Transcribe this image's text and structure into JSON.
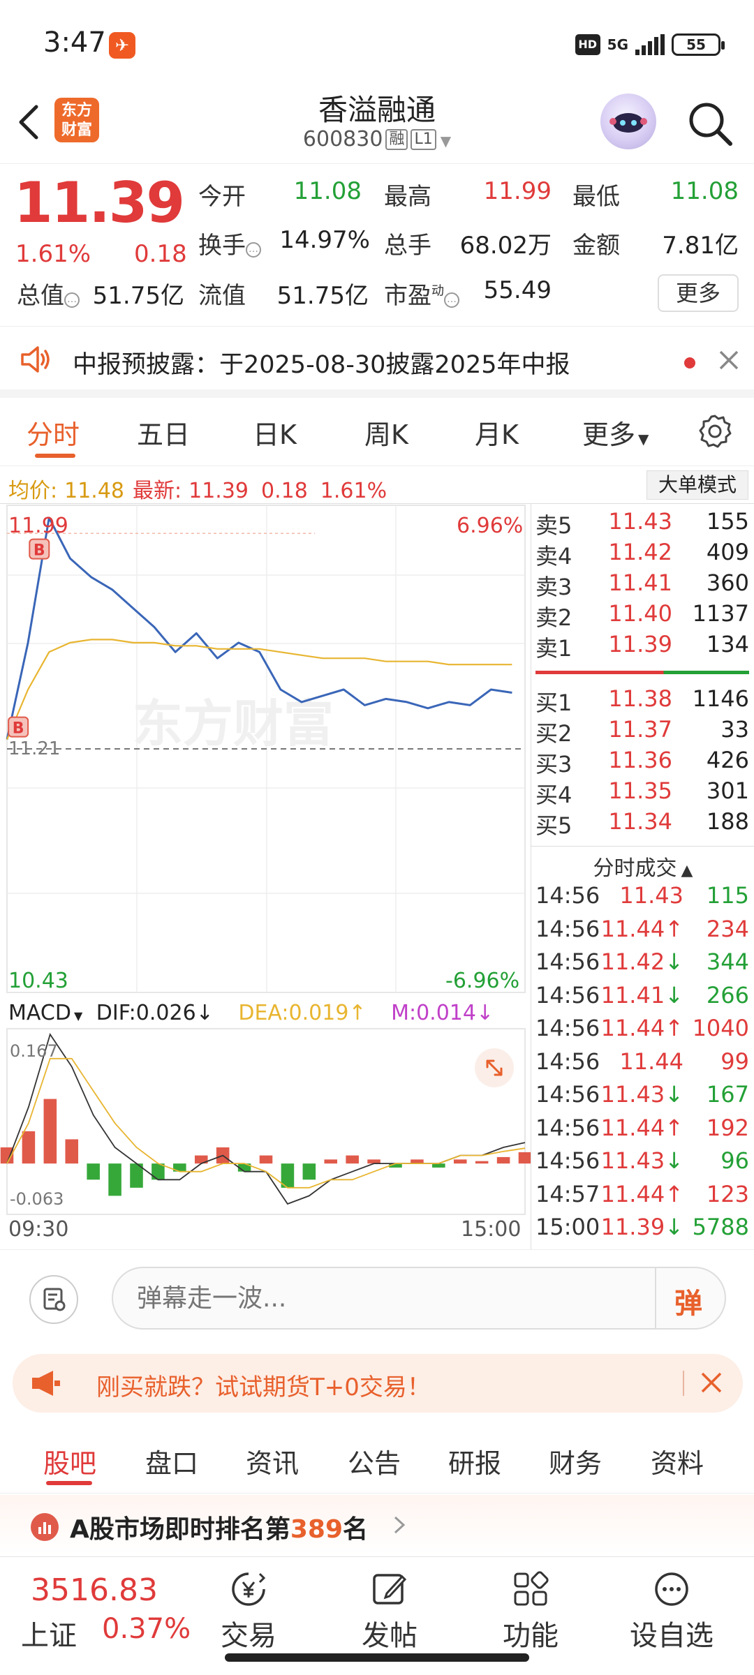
{
  "status_bar": {
    "time": "3:47",
    "network": "5G",
    "hd": "HD",
    "battery": "55"
  },
  "header": {
    "logo_text": "东方财富",
    "stock_name": "香溢融通",
    "stock_code": "600830",
    "tags": [
      "融",
      "L1"
    ]
  },
  "quote": {
    "price": "11.39",
    "change_pct": "1.61%",
    "change_abs": "0.18",
    "fields": [
      {
        "label": "今开",
        "value": "11.08",
        "color": "green"
      },
      {
        "label": "最高",
        "value": "11.99",
        "color": "red"
      },
      {
        "label": "最低",
        "value": "11.08",
        "color": "green"
      },
      {
        "label": "换手",
        "value": "14.97%",
        "color": "dark"
      },
      {
        "label": "总手",
        "value": "68.02万",
        "color": "dark"
      },
      {
        "label": "金额",
        "value": "7.81亿",
        "color": "dark"
      },
      {
        "label": "总值",
        "value": "51.75亿",
        "color": "dark"
      },
      {
        "label": "流值",
        "value": "51.75亿",
        "color": "dark"
      },
      {
        "label": "市盈",
        "value": "55.49",
        "color": "dark",
        "superscript": "动"
      }
    ],
    "more_label": "更多"
  },
  "notice": {
    "text": "中报预披露：于2025-08-30披露2025年中报"
  },
  "chart_tabs": {
    "items": [
      "分时",
      "五日",
      "日K",
      "周K",
      "月K",
      "更多"
    ],
    "active": "分时"
  },
  "info_bar": {
    "avg_label": "均价:",
    "avg_value": "11.48",
    "latest_label": "最新:",
    "latest_value": "11.39",
    "latest_change": "0.18",
    "latest_pct": "1.61%",
    "bigorder_label": "大单模式"
  },
  "chart_labels": {
    "y_max": "11.99",
    "y_min": "10.43",
    "pct_max": "6.96%",
    "pct_min": "-6.96%",
    "prev_close": "11.21",
    "time_start": "09:30",
    "time_end": "15:00",
    "watermark": "东方财富"
  },
  "macd": {
    "name": "MACD",
    "dif": "DIF:0.026",
    "dea": "DEA:0.019",
    "m": "M:0.014",
    "y_max": "0.167",
    "y_min": "-0.063"
  },
  "chart_data": [
    {
      "type": "line",
      "title": "分时",
      "x": [
        "09:30",
        "09:40",
        "09:50",
        "10:00",
        "10:10",
        "10:20",
        "10:30",
        "10:40",
        "10:50",
        "11:00",
        "11:10",
        "11:20",
        "11:30",
        "13:10",
        "13:20",
        "13:30",
        "13:40",
        "13:50",
        "14:00",
        "14:10",
        "14:20",
        "14:30",
        "14:40",
        "14:50",
        "15:00"
      ],
      "series": [
        {
          "name": "最新",
          "color": "#3a66b8",
          "values": [
            11.24,
            11.55,
            11.95,
            11.82,
            11.76,
            11.72,
            11.66,
            11.6,
            11.52,
            11.58,
            11.5,
            11.55,
            11.52,
            11.4,
            11.36,
            11.38,
            11.4,
            11.35,
            11.37,
            11.36,
            11.34,
            11.36,
            11.35,
            11.4,
            11.39
          ]
        },
        {
          "name": "均价",
          "color": "#e8b530",
          "values": [
            11.24,
            11.4,
            11.52,
            11.55,
            11.56,
            11.56,
            11.55,
            11.55,
            11.54,
            11.54,
            11.53,
            11.53,
            11.53,
            11.52,
            11.51,
            11.5,
            11.5,
            11.5,
            11.49,
            11.49,
            11.49,
            11.48,
            11.48,
            11.48,
            11.48
          ]
        }
      ],
      "ylim": [
        10.43,
        11.99
      ],
      "prev_close": 11.21,
      "markers": [
        "B",
        "B"
      ]
    },
    {
      "type": "bar",
      "title": "MACD",
      "x": [
        "09:30",
        "09:40",
        "09:50",
        "10:00",
        "10:10",
        "10:20",
        "10:30",
        "10:40",
        "10:50",
        "11:00",
        "11:10",
        "11:20",
        "11:30",
        "13:10",
        "13:20",
        "13:30",
        "13:40",
        "13:50",
        "14:00",
        "14:10",
        "14:20",
        "14:30",
        "14:40",
        "14:50",
        "15:00"
      ],
      "values": [
        0.02,
        0.04,
        0.08,
        0.03,
        -0.02,
        -0.04,
        -0.03,
        -0.02,
        -0.01,
        0.01,
        0.02,
        -0.01,
        0.01,
        -0.03,
        -0.02,
        0.005,
        0.01,
        0.005,
        -0.005,
        0.005,
        -0.005,
        0.005,
        0.003,
        0.008,
        0.014
      ],
      "series": [
        {
          "name": "DIF",
          "values": [
            0.0,
            0.07,
            0.16,
            0.12,
            0.06,
            0.02,
            0.0,
            -0.02,
            -0.02,
            0.0,
            0.01,
            -0.01,
            -0.01,
            -0.05,
            -0.04,
            -0.02,
            -0.01,
            0.0,
            0.0,
            0.0,
            0.0,
            0.01,
            0.01,
            0.02,
            0.026
          ]
        },
        {
          "name": "DEA",
          "values": [
            0.0,
            0.05,
            0.13,
            0.13,
            0.09,
            0.05,
            0.02,
            0.0,
            -0.01,
            -0.01,
            0.0,
            0.0,
            -0.01,
            -0.03,
            -0.03,
            -0.02,
            -0.02,
            -0.01,
            0.0,
            0.0,
            0.0,
            0.01,
            0.01,
            0.015,
            0.019
          ]
        }
      ],
      "ylim": [
        -0.063,
        0.167
      ]
    }
  ],
  "order_book": {
    "asks": [
      {
        "label": "卖5",
        "price": "11.43",
        "vol": "155"
      },
      {
        "label": "卖4",
        "price": "11.42",
        "vol": "409"
      },
      {
        "label": "卖3",
        "price": "11.41",
        "vol": "360"
      },
      {
        "label": "卖2",
        "price": "11.40",
        "vol": "1137"
      },
      {
        "label": "卖1",
        "price": "11.39",
        "vol": "134"
      }
    ],
    "bids": [
      {
        "label": "买1",
        "price": "11.38",
        "vol": "1146"
      },
      {
        "label": "买2",
        "price": "11.37",
        "vol": "33"
      },
      {
        "label": "买3",
        "price": "11.36",
        "vol": "426"
      },
      {
        "label": "买4",
        "price": "11.35",
        "vol": "301"
      },
      {
        "label": "买5",
        "price": "11.34",
        "vol": "188"
      }
    ]
  },
  "trades": {
    "title": "分时成交",
    "rows": [
      {
        "time": "14:56",
        "price": "11.43",
        "dir": "",
        "vol": "115",
        "color": "red",
        "vcolor": "green"
      },
      {
        "time": "14:56",
        "price": "11.44",
        "dir": "up",
        "vol": "234",
        "color": "red",
        "vcolor": "red"
      },
      {
        "time": "14:56",
        "price": "11.42",
        "dir": "down",
        "vol": "344",
        "color": "red",
        "vcolor": "green"
      },
      {
        "time": "14:56",
        "price": "11.41",
        "dir": "down",
        "vol": "266",
        "color": "red",
        "vcolor": "green"
      },
      {
        "time": "14:56",
        "price": "11.44",
        "dir": "up",
        "vol": "1040",
        "color": "red",
        "vcolor": "red"
      },
      {
        "time": "14:56",
        "price": "11.44",
        "dir": "",
        "vol": "99",
        "color": "red",
        "vcolor": "red"
      },
      {
        "time": "14:56",
        "price": "11.43",
        "dir": "down",
        "vol": "167",
        "color": "red",
        "vcolor": "green"
      },
      {
        "time": "14:56",
        "price": "11.44",
        "dir": "up",
        "vol": "192",
        "color": "red",
        "vcolor": "red"
      },
      {
        "time": "14:56",
        "price": "11.43",
        "dir": "down",
        "vol": "96",
        "color": "red",
        "vcolor": "green"
      },
      {
        "time": "14:57",
        "price": "11.44",
        "dir": "up",
        "vol": "123",
        "color": "red",
        "vcolor": "red"
      },
      {
        "time": "15:00",
        "price": "11.39",
        "dir": "down",
        "vol": "5788",
        "color": "red",
        "vcolor": "green"
      }
    ]
  },
  "comment": {
    "placeholder": "弹幕走一波...",
    "danmu_label": "弹"
  },
  "promo": {
    "text": "刚买就跌？试试期货T+0交易！"
  },
  "bottom_tabs": {
    "items": [
      "股吧",
      "盘口",
      "资讯",
      "公告",
      "研报",
      "财务",
      "资料"
    ],
    "active": "股吧"
  },
  "ranking": {
    "prefix": "A股市场即时排名第",
    "rank": "389",
    "suffix": "名"
  },
  "nav": {
    "index_value": "3516.83",
    "index_name": "上证",
    "index_pct": "0.37%",
    "items": [
      {
        "label": "交易",
        "icon": "yen-icon"
      },
      {
        "label": "发帖",
        "icon": "edit-icon"
      },
      {
        "label": "功能",
        "icon": "grid-icon"
      },
      {
        "label": "设自选",
        "icon": "more-icon"
      }
    ]
  },
  "colors": {
    "up": "#e03a3a",
    "down": "#23a036",
    "accent": "#e8602c",
    "price_line": "#3a66b8",
    "avg_line": "#e8b530"
  }
}
